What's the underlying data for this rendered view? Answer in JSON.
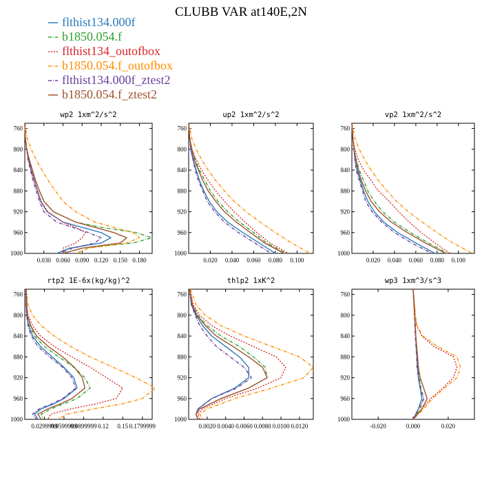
{
  "title": "CLUBB VAR at140E,2N",
  "legend": [
    {
      "name": "flthist134.000f",
      "color": "#2b7bba",
      "dash": ""
    },
    {
      "name": "b1850.054.f",
      "color": "#2ca02c",
      "dash": "5,2,1,2"
    },
    {
      "name": "flthist134_outofbox",
      "color": "#d62728",
      "dash": "2,2"
    },
    {
      "name": "b1850.054.f_outofbox",
      "color": "#ff8c00",
      "dash": "5,2,1,2"
    },
    {
      "name": "flthist134.000f_ztest2",
      "color": "#6a3d9a",
      "dash": "5,2,1,2"
    },
    {
      "name": "b1850.054.f_ztest2",
      "color": "#a0522d",
      "dash": ""
    }
  ],
  "chart_data": [
    {
      "type": "line",
      "title": "wp2   1xm^2/s^2",
      "ylim": [
        1000,
        750
      ],
      "yticks": [
        760,
        800,
        840,
        880,
        920,
        960,
        1000
      ],
      "xlim": [
        0.0,
        0.2
      ],
      "xticks": [
        0.03,
        0.06,
        0.09,
        0.12,
        0.15,
        0.18
      ],
      "xticklabels": [
        "0.030",
        "0.060",
        "0.090",
        "0.120",
        "0.150",
        "0.180"
      ],
      "y": [
        750,
        780,
        800,
        820,
        840,
        860,
        880,
        900,
        920,
        940,
        950,
        960,
        970,
        980,
        990,
        1000
      ],
      "series": [
        {
          "values": [
            0.0,
            0.001,
            0.003,
            0.006,
            0.01,
            0.015,
            0.02,
            0.025,
            0.035,
            0.06,
            0.09,
            0.12,
            0.135,
            0.12,
            0.07,
            0.05
          ]
        },
        {
          "values": [
            0.0,
            0.001,
            0.003,
            0.007,
            0.012,
            0.017,
            0.023,
            0.03,
            0.045,
            0.08,
            0.12,
            0.175,
            0.2,
            0.17,
            0.09,
            0.06
          ]
        },
        {
          "values": [
            0.0,
            0.001,
            0.003,
            0.006,
            0.01,
            0.015,
            0.02,
            0.026,
            0.036,
            0.06,
            0.08,
            0.095,
            0.09,
            0.08,
            0.06,
            0.06
          ]
        },
        {
          "values": [
            0.0,
            0.004,
            0.01,
            0.018,
            0.027,
            0.037,
            0.048,
            0.06,
            0.08,
            0.11,
            0.14,
            0.17,
            0.18,
            0.16,
            0.1,
            0.08
          ]
        },
        {
          "values": [
            0.0,
            0.001,
            0.003,
            0.005,
            0.009,
            0.013,
            0.018,
            0.023,
            0.03,
            0.05,
            0.075,
            0.1,
            0.12,
            0.11,
            0.075,
            0.055
          ]
        },
        {
          "values": [
            0.0,
            0.001,
            0.003,
            0.007,
            0.012,
            0.017,
            0.023,
            0.03,
            0.045,
            0.08,
            0.11,
            0.14,
            0.16,
            0.15,
            0.09,
            0.06
          ]
        }
      ]
    },
    {
      "type": "line",
      "title": "up2   1xm^2/s^2",
      "ylim": [
        1000,
        750
      ],
      "yticks": [
        760,
        800,
        840,
        880,
        920,
        960,
        1000
      ],
      "xlim": [
        0.0,
        0.115
      ],
      "xticks": [
        0.02,
        0.04,
        0.06,
        0.08,
        0.1
      ],
      "xticklabels": [
        "0.020",
        "0.040",
        "0.060",
        "0.080",
        "0.100"
      ],
      "y": [
        750,
        780,
        800,
        820,
        840,
        860,
        880,
        900,
        920,
        940,
        960,
        980,
        1000
      ],
      "series": [
        {
          "values": [
            0.0,
            0.001,
            0.002,
            0.004,
            0.007,
            0.01,
            0.014,
            0.019,
            0.026,
            0.036,
            0.05,
            0.065,
            0.08
          ]
        },
        {
          "values": [
            0.0,
            0.001,
            0.003,
            0.006,
            0.01,
            0.015,
            0.02,
            0.027,
            0.036,
            0.047,
            0.06,
            0.072,
            0.09
          ]
        },
        {
          "values": [
            0.0,
            0.001,
            0.003,
            0.007,
            0.012,
            0.018,
            0.025,
            0.033,
            0.042,
            0.052,
            0.063,
            0.075,
            0.092
          ]
        },
        {
          "values": [
            0.0,
            0.003,
            0.007,
            0.012,
            0.018,
            0.025,
            0.033,
            0.042,
            0.053,
            0.066,
            0.08,
            0.095,
            0.112
          ]
        },
        {
          "values": [
            0.0,
            0.001,
            0.002,
            0.004,
            0.006,
            0.009,
            0.013,
            0.017,
            0.024,
            0.033,
            0.046,
            0.061,
            0.076
          ]
        },
        {
          "values": [
            0.0,
            0.001,
            0.003,
            0.005,
            0.009,
            0.013,
            0.018,
            0.025,
            0.033,
            0.044,
            0.057,
            0.07,
            0.088
          ]
        }
      ]
    },
    {
      "type": "line",
      "title": "vp2   1xm^2/s^2",
      "ylim": [
        1000,
        750
      ],
      "yticks": [
        760,
        800,
        840,
        880,
        920,
        960,
        1000
      ],
      "xlim": [
        0.0,
        0.115
      ],
      "xticks": [
        0.02,
        0.04,
        0.06,
        0.08,
        0.1
      ],
      "xticklabels": [
        "0.020",
        "0.040",
        "0.060",
        "0.080",
        "0.100"
      ],
      "y": [
        750,
        780,
        800,
        820,
        840,
        860,
        880,
        900,
        920,
        940,
        960,
        980,
        1000
      ],
      "series": [
        {
          "values": [
            0.0,
            0.001,
            0.002,
            0.003,
            0.005,
            0.008,
            0.011,
            0.015,
            0.021,
            0.03,
            0.043,
            0.06,
            0.078
          ]
        },
        {
          "values": [
            0.0,
            0.001,
            0.002,
            0.004,
            0.007,
            0.011,
            0.015,
            0.021,
            0.029,
            0.04,
            0.055,
            0.072,
            0.09
          ]
        },
        {
          "values": [
            0.0,
            0.001,
            0.003,
            0.006,
            0.011,
            0.018,
            0.025,
            0.035,
            0.044,
            0.054,
            0.065,
            0.078,
            0.092
          ]
        },
        {
          "values": [
            0.0,
            0.003,
            0.007,
            0.012,
            0.018,
            0.025,
            0.033,
            0.042,
            0.053,
            0.066,
            0.08,
            0.095,
            0.113
          ]
        },
        {
          "values": [
            0.0,
            0.001,
            0.002,
            0.003,
            0.004,
            0.007,
            0.01,
            0.013,
            0.019,
            0.028,
            0.04,
            0.056,
            0.075
          ]
        },
        {
          "values": [
            0.0,
            0.001,
            0.002,
            0.004,
            0.006,
            0.009,
            0.013,
            0.018,
            0.026,
            0.037,
            0.052,
            0.069,
            0.088
          ]
        }
      ]
    },
    {
      "type": "line",
      "title": "rtp2   1E-6x(kg/kg)^2",
      "ylim": [
        1000,
        750
      ],
      "yticks": [
        760,
        800,
        840,
        880,
        920,
        960,
        1000
      ],
      "xlim": [
        0.0,
        0.195
      ],
      "xticks": [
        0.03,
        0.06,
        0.09,
        0.12,
        0.15,
        0.18
      ],
      "xticklabels": [
        "0.0299999",
        "0.0599999",
        "0.0899999",
        "0.12",
        "0.15",
        "0.1799999"
      ],
      "y": [
        750,
        780,
        800,
        820,
        840,
        860,
        880,
        900,
        920,
        940,
        960,
        970,
        980,
        990,
        1000
      ],
      "series": [
        {
          "values": [
            0.002,
            0.002,
            0.003,
            0.006,
            0.012,
            0.024,
            0.042,
            0.06,
            0.075,
            0.08,
            0.06,
            0.045,
            0.025,
            0.015,
            0.02
          ]
        },
        {
          "values": [
            0.002,
            0.003,
            0.004,
            0.008,
            0.015,
            0.03,
            0.052,
            0.075,
            0.092,
            0.1,
            0.08,
            0.06,
            0.04,
            0.025,
            0.028
          ]
        },
        {
          "values": [
            0.002,
            0.003,
            0.005,
            0.012,
            0.024,
            0.045,
            0.072,
            0.1,
            0.125,
            0.15,
            0.14,
            0.11,
            0.07,
            0.04,
            0.035
          ]
        },
        {
          "values": [
            0.002,
            0.005,
            0.012,
            0.025,
            0.045,
            0.07,
            0.1,
            0.135,
            0.17,
            0.2,
            0.18,
            0.15,
            0.105,
            0.065,
            0.05
          ]
        },
        {
          "values": [
            0.002,
            0.002,
            0.003,
            0.005,
            0.01,
            0.02,
            0.038,
            0.058,
            0.072,
            0.078,
            0.058,
            0.042,
            0.022,
            0.012,
            0.018
          ]
        },
        {
          "values": [
            0.002,
            0.003,
            0.004,
            0.009,
            0.018,
            0.036,
            0.058,
            0.076,
            0.088,
            0.092,
            0.072,
            0.055,
            0.035,
            0.02,
            0.025
          ]
        }
      ]
    },
    {
      "type": "line",
      "title": "thlp2   1xK^2",
      "ylim": [
        1000,
        750
      ],
      "yticks": [
        760,
        800,
        840,
        880,
        920,
        960,
        1000
      ],
      "xlim": [
        0.0,
        0.0135
      ],
      "xticks": [
        0.002,
        0.004,
        0.006,
        0.008,
        0.01,
        0.012
      ],
      "xticklabels": [
        "0.0020",
        "0.0040",
        "0.0060",
        "0.0080",
        "0.0100",
        "0.0120"
      ],
      "y": [
        750,
        780,
        800,
        820,
        840,
        860,
        880,
        900,
        920,
        940,
        960,
        980,
        990,
        1000
      ],
      "series": [
        {
          "values": [
            0.0001,
            0.0003,
            0.0008,
            0.0015,
            0.0025,
            0.004,
            0.0055,
            0.0065,
            0.0065,
            0.005,
            0.0025,
            0.001,
            0.0008,
            0.001
          ]
        },
        {
          "values": [
            0.0001,
            0.0004,
            0.001,
            0.002,
            0.0035,
            0.0055,
            0.007,
            0.0083,
            0.0085,
            0.0065,
            0.0035,
            0.0012,
            0.0008,
            0.001
          ]
        },
        {
          "values": [
            0.0001,
            0.0005,
            0.0012,
            0.0025,
            0.0045,
            0.007,
            0.0095,
            0.0105,
            0.01,
            0.0075,
            0.004,
            0.0015,
            0.001,
            0.0012
          ]
        },
        {
          "values": [
            0.0002,
            0.0008,
            0.0018,
            0.0035,
            0.006,
            0.009,
            0.012,
            0.0135,
            0.0125,
            0.009,
            0.005,
            0.002,
            0.0012,
            0.0015
          ]
        },
        {
          "values": [
            0.0001,
            0.0003,
            0.0007,
            0.0012,
            0.002,
            0.003,
            0.0045,
            0.006,
            0.0068,
            0.0052,
            0.0025,
            0.001,
            0.0008,
            0.001
          ]
        },
        {
          "values": [
            0.0001,
            0.0004,
            0.0009,
            0.0018,
            0.003,
            0.0048,
            0.0065,
            0.008,
            0.0085,
            0.0065,
            0.0035,
            0.0012,
            0.0008,
            0.001
          ]
        }
      ]
    },
    {
      "type": "line",
      "title": "wp3   1xm^3/s^3",
      "ylim": [
        1000,
        750
      ],
      "yticks": [
        760,
        800,
        840,
        880,
        920,
        960,
        1000
      ],
      "xlim": [
        -0.035,
        0.035
      ],
      "xticks": [
        -0.02,
        0.0,
        0.02
      ],
      "xticklabels": [
        "-0.020",
        "0.000",
        "0.020"
      ],
      "y": [
        750,
        780,
        800,
        820,
        840,
        860,
        880,
        900,
        920,
        940,
        960,
        980,
        1000
      ],
      "series": [
        {
          "values": [
            0.0,
            0.0005,
            0.0008,
            0.0012,
            0.0015,
            0.0018,
            0.0022,
            0.0025,
            0.003,
            0.004,
            0.005,
            0.003,
            0.0
          ]
        },
        {
          "values": [
            0.0,
            0.0005,
            0.0008,
            0.0012,
            0.0015,
            0.002,
            0.0025,
            0.003,
            0.0035,
            0.0045,
            0.006,
            0.004,
            0.0
          ]
        },
        {
          "values": [
            0.0,
            0.0008,
            0.0012,
            0.002,
            0.005,
            0.012,
            0.023,
            0.025,
            0.023,
            0.017,
            0.01,
            0.005,
            0.0
          ]
        },
        {
          "values": [
            0.0,
            0.0008,
            0.0012,
            0.0022,
            0.0055,
            0.014,
            0.025,
            0.027,
            0.025,
            0.018,
            0.011,
            0.006,
            0.0
          ]
        },
        {
          "values": [
            0.0,
            0.0005,
            0.0008,
            0.001,
            0.0012,
            0.0016,
            0.002,
            0.0022,
            0.003,
            0.004,
            0.006,
            0.003,
            0.0
          ]
        },
        {
          "values": [
            0.0,
            0.0005,
            0.0008,
            0.0012,
            0.0015,
            0.002,
            0.0025,
            0.003,
            0.004,
            0.006,
            0.008,
            0.005,
            0.0
          ]
        }
      ]
    }
  ]
}
